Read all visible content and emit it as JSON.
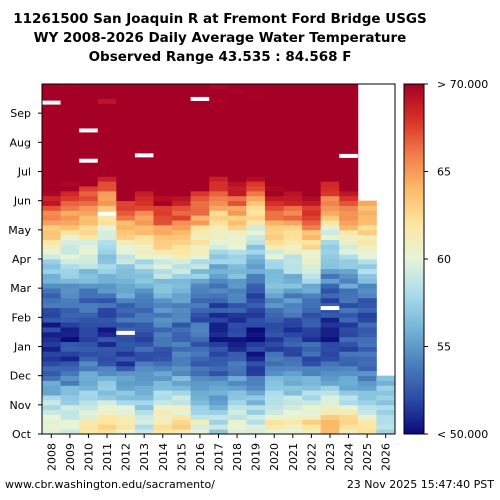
{
  "chart_data": {
    "type": "heatmap",
    "title": [
      "11261500 San Joaquin R at Fremont Ford Bridge USGS",
      "WY 2008-2026 Daily Average Water Temperature",
      "Observed Range 43.535 : 84.568 F"
    ],
    "x_categories": [
      "2008",
      "2009",
      "2010",
      "2011",
      "2012",
      "2013",
      "2014",
      "2015",
      "2016",
      "2017",
      "2018",
      "2019",
      "2020",
      "2021",
      "2022",
      "2023",
      "2024",
      "2025",
      "2026"
    ],
    "y_month_ticks": [
      "Oct",
      "Nov",
      "Dec",
      "Jan",
      "Feb",
      "Mar",
      "Apr",
      "May",
      "Jun",
      "Jul",
      "Aug",
      "Sep"
    ],
    "colorbar": {
      "range": [
        50,
        70
      ],
      "units": "F",
      "ticks": [
        "< 50.000",
        "55",
        "60",
        "65",
        "> 70.000"
      ],
      "colormap": "RdYlBu_r"
    },
    "approx_monthly_mean_temperature_F": [
      [
        61,
        60,
        61,
        62,
        61,
        59,
        62,
        62,
        60,
        58,
        60,
        59,
        61,
        61,
        62,
        63,
        62,
        61,
        58
      ],
      [
        56,
        56,
        57,
        57,
        56,
        55,
        58,
        57,
        55,
        55,
        56,
        55,
        57,
        57,
        57,
        58,
        57,
        56,
        57
      ],
      [
        52,
        52,
        53,
        53,
        52,
        53,
        53,
        54,
        53,
        52,
        53,
        51,
        53,
        53,
        53,
        52,
        53,
        53,
        null
      ],
      [
        51,
        51,
        52,
        51,
        52,
        52,
        53,
        53,
        53,
        51,
        51,
        51,
        52,
        52,
        52,
        51,
        52,
        52,
        null
      ],
      [
        53,
        53,
        53,
        53,
        54,
        54,
        55,
        55,
        53,
        52,
        53,
        52,
        54,
        54,
        54,
        52,
        53,
        53,
        null
      ],
      [
        56,
        57,
        57,
        56,
        57,
        57,
        58,
        58,
        57,
        55,
        56,
        55,
        57,
        57,
        58,
        55,
        56,
        57,
        null
      ],
      [
        61,
        60,
        60,
        59,
        61,
        61,
        63,
        62,
        61,
        59,
        60,
        58,
        61,
        61,
        62,
        58,
        60,
        61,
        null
      ],
      [
        66,
        65,
        64,
        62,
        66,
        66,
        67,
        67,
        65,
        63,
        64,
        62,
        66,
        66,
        67,
        63,
        65,
        64,
        null
      ],
      [
        71,
        70,
        69,
        67,
        71,
        71,
        72,
        72,
        70,
        68,
        69,
        67,
        71,
        71,
        72,
        69,
        71,
        null,
        null
      ],
      [
        75,
        75,
        74,
        73,
        75,
        75,
        76,
        76,
        75,
        74,
        75,
        74,
        76,
        75,
        76,
        75,
        76,
        null,
        null
      ],
      [
        74,
        74,
        73,
        73,
        74,
        74,
        75,
        75,
        74,
        74,
        74,
        73,
        75,
        74,
        75,
        74,
        75,
        null,
        null
      ],
      [
        71,
        71,
        71,
        70,
        71,
        71,
        72,
        72,
        71,
        70,
        71,
        70,
        72,
        71,
        72,
        71,
        72,
        null,
        null
      ]
    ],
    "missing_data_marks": [
      {
        "year": "2008",
        "month": "Sep"
      },
      {
        "year": "2010",
        "month": "Aug"
      },
      {
        "year": "2010",
        "month": "Jul"
      },
      {
        "year": "2011",
        "month": "May"
      },
      {
        "year": "2012",
        "month": "Jan"
      },
      {
        "year": "2013",
        "month": "Jul"
      },
      {
        "year": "2016",
        "month": "Sep"
      },
      {
        "year": "2023",
        "month": "Feb"
      },
      {
        "year": "2024",
        "month": "Jul"
      }
    ]
  },
  "footer": {
    "left": "www.cbr.washington.edu/sacramento/",
    "right": "23 Nov 2025 15:47:40 PST"
  }
}
